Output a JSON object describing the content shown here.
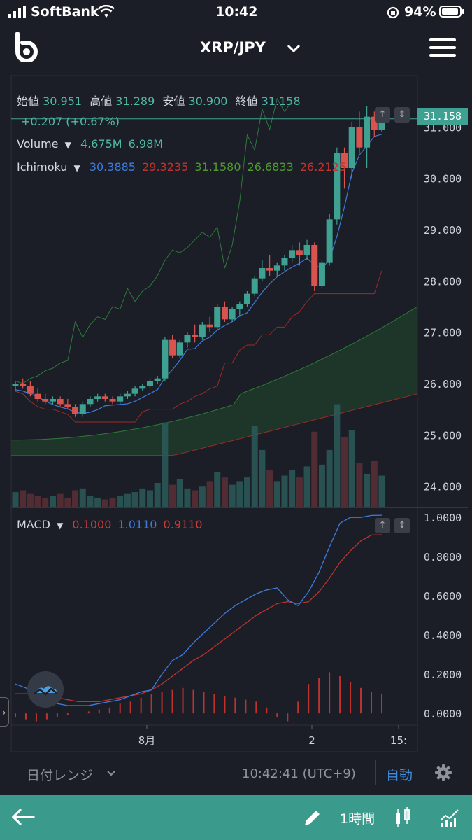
{
  "status_bar": {
    "carrier": "SoftBank",
    "time": "10:42",
    "battery": "94%",
    "battery_level": 0.94
  },
  "header": {
    "pair": "XRP/JPY",
    "logo_icon": "b-logo-icon",
    "dropdown_icon": "chevron-down-icon",
    "menu_icon": "hamburger-menu-icon"
  },
  "ohlc": {
    "open_label": "始値",
    "open": "30.951",
    "high_label": "高値",
    "high": "31.289",
    "low_label": "安値",
    "low": "30.900",
    "close_label": "終値",
    "close": "31.158",
    "change": "+0.207 (+0.67%)"
  },
  "volume": {
    "label": "Volume",
    "v1": "4.675M",
    "v2": "6.98M"
  },
  "ichimoku": {
    "label": "Ichimoku",
    "values": [
      "30.3885",
      "29.3235",
      "31.1580",
      "26.6833",
      "26.2125"
    ],
    "colors": [
      "#3d7bdc",
      "#c0332d",
      "#4e9a2b",
      "#4e9a2b",
      "#c0332d"
    ]
  },
  "price_axis": {
    "ticks": [
      "31.000",
      "30.000",
      "29.000",
      "28.000",
      "27.000",
      "26.000",
      "25.000",
      "24.000"
    ],
    "tick_values": [
      31,
      30,
      29,
      28,
      27,
      26,
      25,
      24
    ],
    "current_price": "31.158"
  },
  "macd": {
    "label": "MACD",
    "values": [
      "0.1000",
      "1.0110",
      "0.9110"
    ],
    "colors": [
      "#d13b35",
      "#3d7bdc",
      "#d13b35"
    ],
    "ticks": [
      "1.0000",
      "0.8000",
      "0.6000",
      "0.4000",
      "0.2000",
      "0.0000"
    ],
    "tick_values": [
      1.0,
      0.8,
      0.6,
      0.4,
      0.2,
      0.0
    ]
  },
  "time_axis": {
    "labels": [
      "8月",
      "2",
      "15:"
    ]
  },
  "range_bar": {
    "date_range": "日付レンジ",
    "clock": "10:42:41 (UTC+9)",
    "auto": "自動"
  },
  "bottom_bar": {
    "interval": "1時間"
  },
  "chart_data": {
    "type": "candlestick",
    "candles": [
      [
        25.95,
        26.05,
        25.85,
        26.0
      ],
      [
        26.0,
        26.1,
        25.9,
        25.95
      ],
      [
        25.95,
        26.05,
        25.75,
        25.8
      ],
      [
        25.8,
        25.9,
        25.65,
        25.7
      ],
      [
        25.7,
        25.8,
        25.6,
        25.65
      ],
      [
        25.65,
        25.75,
        25.6,
        25.7
      ],
      [
        25.7,
        25.75,
        25.55,
        25.6
      ],
      [
        25.6,
        25.7,
        25.5,
        25.55
      ],
      [
        25.55,
        25.6,
        25.35,
        25.4
      ],
      [
        25.4,
        25.65,
        25.35,
        25.6
      ],
      [
        25.6,
        25.75,
        25.55,
        25.7
      ],
      [
        25.7,
        25.8,
        25.65,
        25.75
      ],
      [
        25.75,
        25.8,
        25.65,
        25.7
      ],
      [
        25.7,
        25.75,
        25.6,
        25.65
      ],
      [
        25.65,
        25.8,
        25.6,
        25.75
      ],
      [
        25.75,
        25.85,
        25.7,
        25.8
      ],
      [
        25.8,
        25.95,
        25.75,
        25.9
      ],
      [
        25.9,
        26.0,
        25.85,
        25.95
      ],
      [
        25.95,
        26.1,
        25.9,
        26.05
      ],
      [
        26.05,
        26.15,
        26.0,
        26.1
      ],
      [
        26.1,
        26.9,
        26.05,
        26.85
      ],
      [
        26.85,
        26.95,
        26.5,
        26.55
      ],
      [
        26.55,
        26.85,
        26.5,
        26.8
      ],
      [
        26.8,
        27.0,
        26.7,
        26.95
      ],
      [
        26.95,
        27.15,
        26.8,
        26.9
      ],
      [
        26.9,
        27.2,
        26.85,
        27.15
      ],
      [
        27.15,
        27.3,
        27.0,
        27.1
      ],
      [
        27.1,
        27.55,
        27.05,
        27.5
      ],
      [
        27.5,
        27.6,
        27.2,
        27.25
      ],
      [
        27.25,
        27.5,
        27.2,
        27.45
      ],
      [
        27.45,
        27.6,
        27.3,
        27.55
      ],
      [
        27.55,
        27.8,
        27.5,
        27.75
      ],
      [
        27.75,
        28.1,
        27.7,
        28.05
      ],
      [
        28.05,
        28.4,
        28.0,
        28.25
      ],
      [
        28.25,
        28.5,
        28.1,
        28.2
      ],
      [
        28.2,
        28.35,
        28.1,
        28.3
      ],
      [
        28.3,
        28.5,
        28.2,
        28.45
      ],
      [
        28.45,
        28.7,
        28.35,
        28.6
      ],
      [
        28.6,
        28.75,
        28.3,
        28.5
      ],
      [
        28.5,
        28.8,
        28.4,
        28.7
      ],
      [
        28.7,
        28.75,
        27.8,
        27.9
      ],
      [
        27.9,
        28.4,
        27.85,
        28.35
      ],
      [
        28.35,
        29.3,
        28.3,
        29.2
      ],
      [
        29.2,
        30.6,
        29.1,
        30.5
      ],
      [
        30.5,
        30.6,
        29.8,
        30.2
      ],
      [
        30.2,
        31.1,
        30.0,
        31.0
      ],
      [
        31.0,
        31.3,
        30.5,
        30.6
      ],
      [
        30.6,
        31.4,
        30.2,
        31.2
      ],
      [
        31.2,
        31.3,
        30.8,
        30.95
      ],
      [
        30.95,
        31.29,
        30.9,
        31.158
      ]
    ],
    "volumes": [
      0.8,
      0.9,
      0.7,
      0.6,
      0.5,
      0.6,
      0.7,
      0.5,
      0.9,
      1.0,
      0.6,
      0.5,
      0.4,
      0.5,
      0.6,
      0.7,
      0.8,
      1.0,
      0.9,
      1.3,
      4.6,
      1.2,
      1.5,
      1.0,
      0.9,
      1.1,
      1.4,
      1.9,
      1.6,
      1.2,
      1.4,
      1.6,
      4.4,
      3.1,
      2.0,
      1.4,
      1.7,
      2.0,
      1.6,
      2.2,
      4.1,
      2.3,
      3.1,
      5.6,
      3.8,
      4.2,
      2.4,
      1.8,
      2.5,
      1.7
    ],
    "macd_line": [
      0.15,
      0.13,
      0.1,
      0.07,
      0.05,
      0.04,
      0.04,
      0.04,
      0.05,
      0.06,
      0.07,
      0.09,
      0.11,
      0.12,
      0.2,
      0.27,
      0.3,
      0.36,
      0.41,
      0.46,
      0.51,
      0.55,
      0.58,
      0.61,
      0.63,
      0.64,
      0.58,
      0.55,
      0.62,
      0.72,
      0.85,
      0.97,
      1.0,
      1.0,
      1.01,
      1.011
    ],
    "signal_line": [
      0.1,
      0.1,
      0.1,
      0.09,
      0.08,
      0.07,
      0.06,
      0.06,
      0.06,
      0.07,
      0.08,
      0.09,
      0.1,
      0.12,
      0.15,
      0.19,
      0.23,
      0.27,
      0.3,
      0.34,
      0.38,
      0.42,
      0.46,
      0.5,
      0.53,
      0.56,
      0.57,
      0.56,
      0.57,
      0.62,
      0.69,
      0.77,
      0.83,
      0.88,
      0.91,
      0.911
    ],
    "histogram": [
      -0.02,
      -0.03,
      -0.04,
      -0.03,
      -0.02,
      -0.01,
      0.0,
      0.01,
      0.02,
      0.03,
      0.05,
      0.06,
      0.08,
      0.1,
      0.11,
      0.12,
      0.13,
      0.12,
      0.11,
      0.1,
      0.09,
      0.08,
      0.07,
      0.06,
      0.03,
      -0.02,
      -0.04,
      0.06,
      0.15,
      0.18,
      0.21,
      0.19,
      0.16,
      0.13,
      0.11,
      0.1
    ],
    "price_ylim": [
      23.6,
      32.0
    ],
    "macd_ylim": [
      -0.06,
      1.04
    ],
    "grid": false
  }
}
